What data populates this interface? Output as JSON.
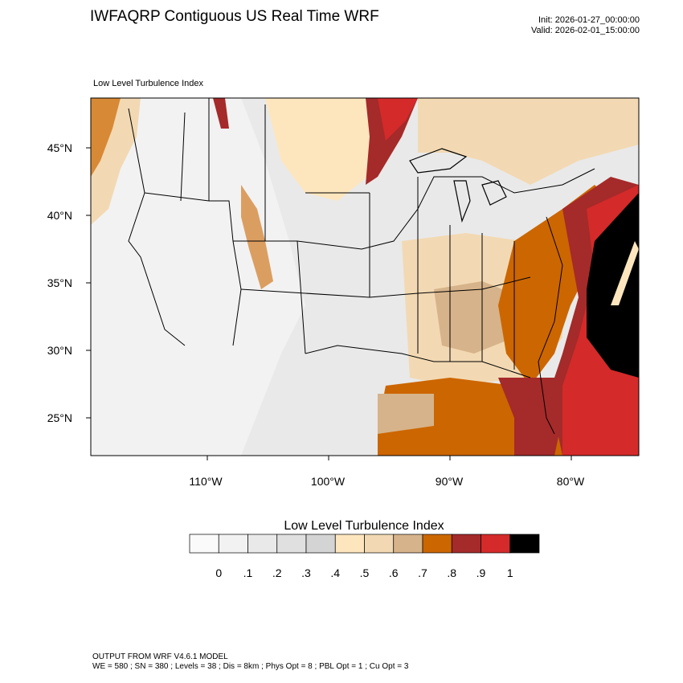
{
  "header": {
    "title": "IWFAQRP Contiguous US Real Time WRF",
    "init": "Init: 2026-01-27_00:00:00",
    "valid": "Valid: 2026-02-01_15:00:00"
  },
  "map": {
    "subtitle": "Low Level Turbulence Index",
    "lat_labels": [
      "45°N",
      "40°N",
      "35°N",
      "30°N",
      "25°N"
    ],
    "lon_labels": [
      "110°W",
      "100°W",
      "90°W",
      "80°W"
    ]
  },
  "colorbar": {
    "title": "Low Level Turbulence Index",
    "ticks": [
      "0",
      ".1",
      ".2",
      ".3",
      ".4",
      ".5",
      ".6",
      ".7",
      ".8",
      ".9",
      "1"
    ],
    "colors": [
      "#fafafa",
      "#f2f2f2",
      "#e9e9e9",
      "#e0e0e0",
      "#d4d4d4",
      "#fde6be",
      "#f2d9b3",
      "#d6b38a",
      "#cc6600",
      "#a52a2a",
      "#d42a2a",
      "#000000"
    ]
  },
  "footer": {
    "line1": "OUTPUT FROM WRF V4.6.1 MODEL",
    "line2": "WE = 580 ; SN = 380 ; Levels = 38 ; Dis = 8km ; Phys Opt = 8 ; PBL Opt = 1 ; Cu Opt = 3"
  }
}
